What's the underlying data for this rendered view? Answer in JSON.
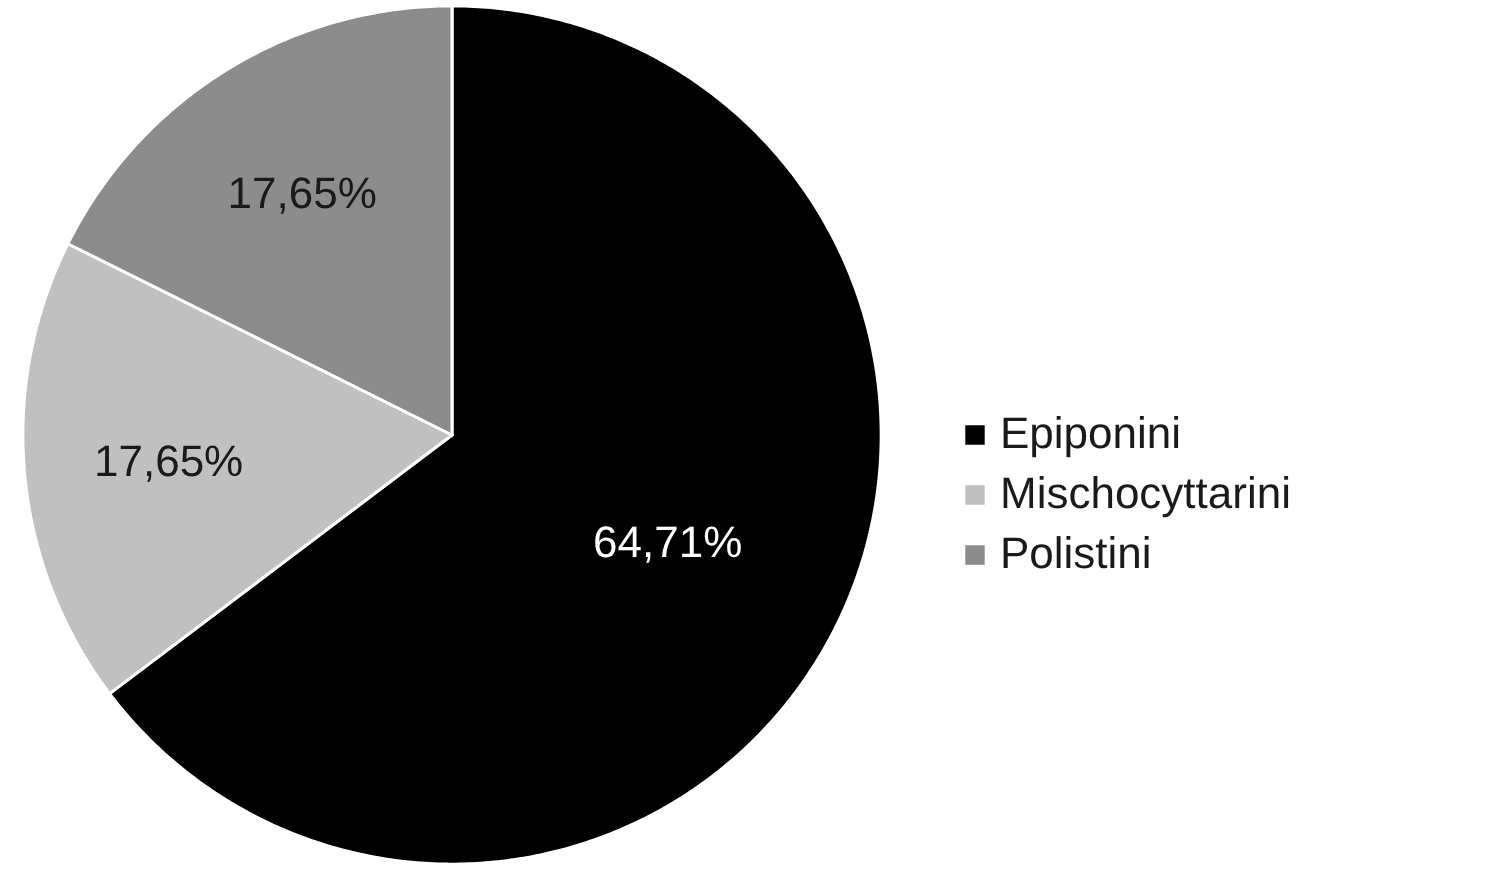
{
  "chart_data": {
    "type": "pie",
    "categories": [
      "Epiponini",
      "Mischocyttarini",
      "Polistini"
    ],
    "values": [
      64.71,
      17.65,
      17.65
    ],
    "colors": [
      "#000000",
      "#c0c0c0",
      "#8c8c8c"
    ],
    "value_labels": [
      "64,71%",
      "17,65%",
      "17,65%"
    ],
    "legend": "right"
  }
}
